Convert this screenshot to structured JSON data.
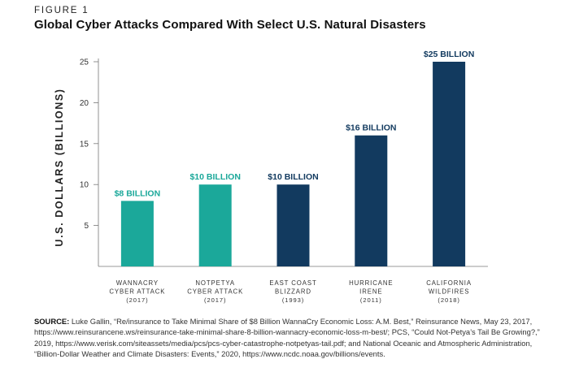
{
  "figure_label": "FIGURE 1",
  "chart_data": {
    "type": "bar",
    "title": "Global Cyber Attacks Compared With Select U.S. Natural Disasters",
    "ylabel": "U.S. DOLLARS (BILLIONS)",
    "xlabel": "",
    "ylim": [
      0,
      25
    ],
    "yticks": [
      5,
      10,
      15,
      20,
      25
    ],
    "categories": [
      [
        "WANNACRY",
        "CYBER ATTACK",
        "(2017)"
      ],
      [
        "NOTPETYA",
        "CYBER ATTACK",
        "(2017)"
      ],
      [
        "EAST COAST",
        "BLIZZARD",
        "(1993)"
      ],
      [
        "HURRICANE",
        "IRENE",
        "(2011)"
      ],
      [
        "CALIFORNIA",
        "WILDFIRES",
        "(2018)"
      ]
    ],
    "values": [
      8,
      10,
      10,
      16,
      25
    ],
    "data_labels": [
      "$8 BILLION",
      "$10 BILLION",
      "$10 BILLION",
      "$16 BILLION",
      "$25 BILLION"
    ],
    "bar_colors": [
      "#1ba89a",
      "#1ba89a",
      "#123a5f",
      "#123a5f",
      "#123a5f"
    ],
    "grid": false
  },
  "source": {
    "label": "SOURCE:",
    "text": "Luke Gallin, “Re/insurance to Take Minimal Share of $8 Billion WannaCry Economic Loss: A.M. Best,” Reinsurance News, May 23, 2017, https://www.reinsurancene.ws/reinsurance-take-minimal-share-8-billion-wannacry-economic-loss-m-best/; PCS, “Could Not-Petya’s Tail Be Growing?,” 2019, https://www.verisk.com/siteassets/media/pcs/pcs-cyber-catastrophe-notpetyas-tail.pdf; and National Oceanic and Atmospheric Administration, “Billion-Dollar Weather and Climate Disasters: Events,” 2020, https://www.ncdc.noaa.gov/billions/events."
  }
}
